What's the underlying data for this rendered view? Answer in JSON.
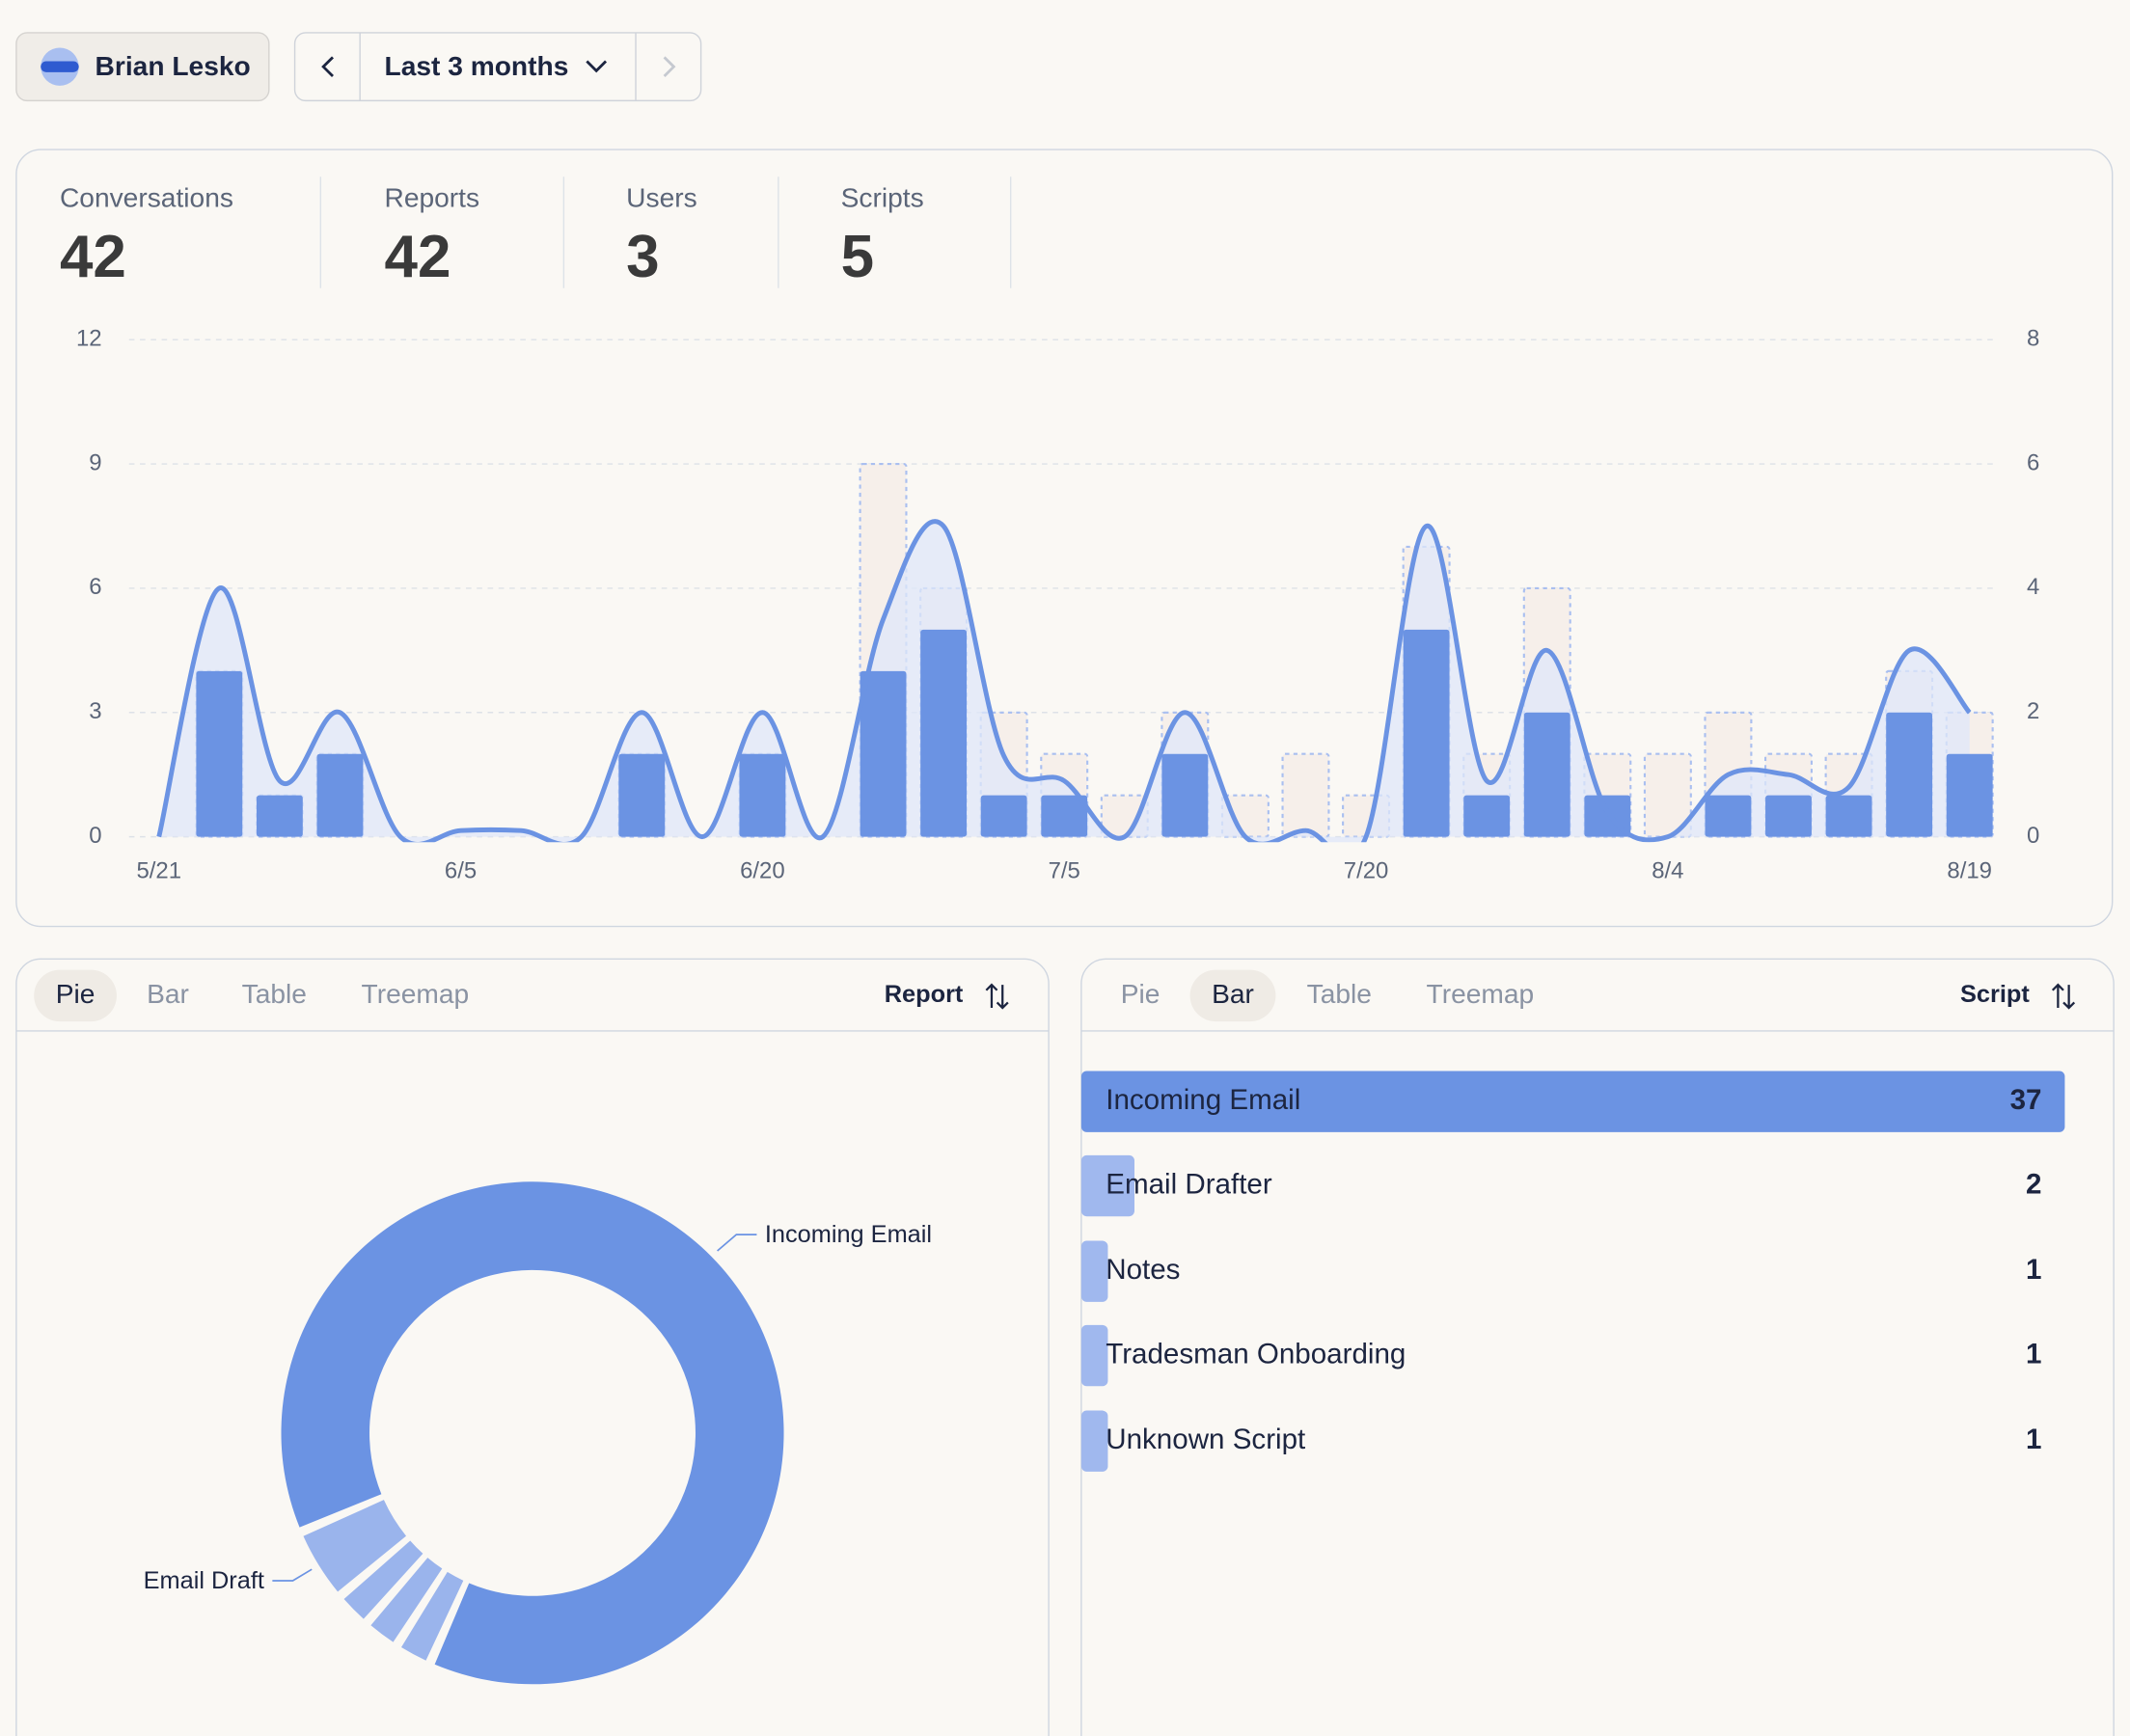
{
  "header": {
    "user": "Brian Lesko",
    "range": "Last 3 months"
  },
  "stats": [
    {
      "label": "Conversations",
      "value": 42
    },
    {
      "label": "Reports",
      "value": 42
    },
    {
      "label": "Users",
      "value": 3
    },
    {
      "label": "Scripts",
      "value": 5
    }
  ],
  "panels": [
    {
      "tabs": [
        "Pie",
        "Bar",
        "Table",
        "Treemap"
      ],
      "active": 0,
      "sort": "Report"
    },
    {
      "tabs": [
        "Pie",
        "Bar",
        "Table",
        "Treemap"
      ],
      "active": 1,
      "sort": "Script"
    }
  ],
  "chart_data": [
    {
      "type": "combo",
      "categories": [
        "5/21",
        null,
        null,
        null,
        null,
        "6/5",
        null,
        null,
        null,
        null,
        "6/20",
        null,
        null,
        null,
        null,
        "7/5",
        null,
        null,
        null,
        null,
        "7/20",
        null,
        null,
        null,
        null,
        "8/4",
        null,
        null,
        null,
        null,
        "8/19"
      ],
      "series": [
        {
          "mark": "bar-outline",
          "color": "#f6efea",
          "values": [
            0,
            4,
            1,
            2,
            0,
            0,
            0,
            0,
            2,
            0,
            2,
            0,
            9,
            6,
            3,
            2,
            1,
            3,
            1,
            2,
            1,
            7,
            2,
            6,
            2,
            2,
            3,
            2,
            2,
            4,
            3
          ]
        },
        {
          "mark": "bar",
          "color": "#6b93e3",
          "values": [
            0,
            4,
            1,
            2,
            0,
            0,
            0,
            0,
            2,
            0,
            2,
            0,
            4,
            5,
            1,
            1,
            0,
            2,
            0,
            0,
            0,
            5,
            1,
            3,
            1,
            0,
            1,
            1,
            1,
            3,
            2
          ]
        },
        {
          "mark": "line",
          "color": "#6b93e3",
          "axis": "y2",
          "values": [
            0,
            4,
            0.9,
            2,
            0,
            0.1,
            0.1,
            0,
            2,
            0,
            2,
            0,
            3.5,
            5,
            1.3,
            0.9,
            0,
            2,
            0,
            0.1,
            0,
            5,
            0.9,
            3,
            0.4,
            0,
            1,
            1,
            0.8,
            3,
            2
          ]
        }
      ],
      "ylim": [
        0,
        12
      ],
      "yticks": [
        0,
        3,
        6,
        9,
        12
      ],
      "y2lim": [
        0,
        8
      ],
      "y2ticks": [
        0,
        2,
        4,
        6,
        8
      ],
      "grid": true
    },
    {
      "type": "pie",
      "categories": [
        "Incoming Email",
        "Email Draft",
        null,
        null,
        null
      ],
      "values": [
        37,
        2,
        1,
        1,
        1
      ],
      "colors": [
        "#6b93e3",
        "#9ab4ec",
        "#9ab4ec",
        "#9ab4ec",
        "#9ab4ec"
      ]
    },
    {
      "type": "bar",
      "orientation": "horizontal",
      "categories": [
        "Incoming Email",
        "Email Drafter",
        "Notes",
        "Tradesman Onboarding",
        "Unknown Script"
      ],
      "values": [
        37,
        2,
        1,
        1,
        1
      ],
      "colors": [
        "#6b93e3",
        "#a0b8ee",
        "#a0b8ee",
        "#a0b8ee",
        "#a0b8ee"
      ],
      "xlim": [
        0,
        37
      ]
    }
  ]
}
